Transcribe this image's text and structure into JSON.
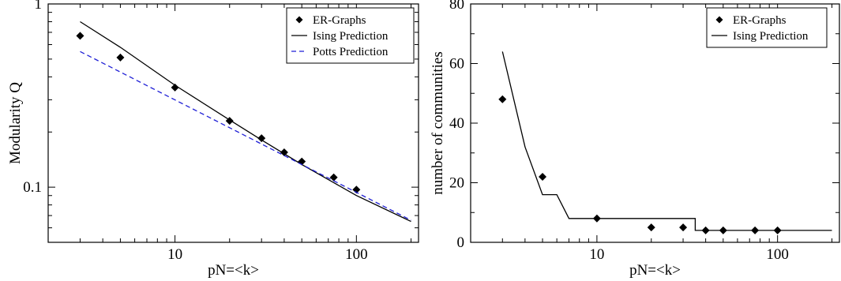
{
  "chart_data": [
    {
      "type": "scatter",
      "xlabel": "pN=<k>",
      "ylabel": "Modularity Q",
      "xscale": "log",
      "yscale": "log",
      "xlim": [
        2,
        220
      ],
      "ylim": [
        0.05,
        1
      ],
      "xticks": [
        10,
        100
      ],
      "xtick_labels": [
        "10",
        "100"
      ],
      "yticks": [
        0.1,
        1
      ],
      "ytick_labels": [
        "0.1",
        "1"
      ],
      "grid": false,
      "legend_position": "top-right",
      "series": [
        {
          "name": "ER-Graphs",
          "kind": "markers",
          "marker": "diamond",
          "color": "#000000",
          "x": [
            3,
            5,
            10,
            20,
            30,
            40,
            50,
            75,
            100
          ],
          "y": [
            0.67,
            0.51,
            0.35,
            0.23,
            0.185,
            0.155,
            0.138,
            0.113,
            0.097
          ]
        },
        {
          "name": "Ising Prediction",
          "kind": "line",
          "color": "#000000",
          "dash": "solid",
          "x": [
            3,
            5,
            10,
            20,
            30,
            50,
            100,
            200
          ],
          "y": [
            0.8,
            0.58,
            0.36,
            0.233,
            0.181,
            0.133,
            0.09,
            0.065
          ]
        },
        {
          "name": "Potts Prediction",
          "kind": "line",
          "color": "#1f1fd6",
          "dash": "dashed",
          "x": [
            3,
            200
          ],
          "y": [
            0.55,
            0.066
          ]
        }
      ]
    },
    {
      "type": "scatter",
      "xlabel": "pN=<k>",
      "ylabel": "number of communities",
      "xscale": "log",
      "yscale": "linear",
      "xlim": [
        2,
        220
      ],
      "ylim": [
        0,
        80
      ],
      "xticks": [
        10,
        100
      ],
      "xtick_labels": [
        "10",
        "100"
      ],
      "yticks": [
        0,
        20,
        40,
        60,
        80
      ],
      "ytick_labels": [
        "0",
        "20",
        "40",
        "60",
        "80"
      ],
      "grid": false,
      "legend_position": "top-right",
      "series": [
        {
          "name": "ER-Graphs",
          "kind": "markers",
          "marker": "diamond",
          "color": "#000000",
          "x": [
            3,
            5,
            10,
            20,
            30,
            40,
            50,
            75,
            100
          ],
          "y": [
            48,
            22,
            8,
            5,
            5,
            4,
            4,
            4,
            4
          ]
        },
        {
          "name": "Ising Prediction",
          "kind": "line",
          "color": "#000000",
          "dash": "solid",
          "x": [
            3,
            4,
            5,
            6,
            7,
            35,
            35,
            200
          ],
          "y": [
            64,
            32,
            16,
            16,
            8,
            8,
            4,
            4
          ]
        }
      ]
    }
  ]
}
